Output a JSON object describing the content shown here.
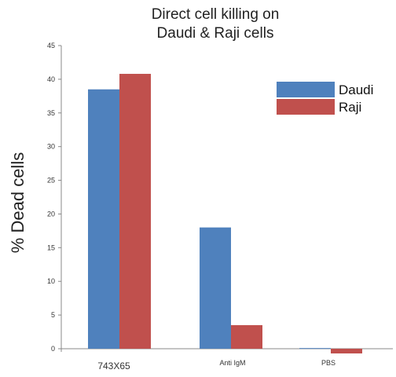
{
  "chart_data": {
    "type": "bar",
    "title_lines": [
      "Direct cell killing on",
      "Daudi & Raji cells"
    ],
    "ylabel": "% Dead cells",
    "xlabel": "",
    "categories": [
      "743X65",
      "Anti IgM",
      "PBS"
    ],
    "series": [
      {
        "name": "Daudi",
        "color": "#4f81bd",
        "values": [
          38.5,
          18.0,
          0.1
        ]
      },
      {
        "name": "Raji",
        "color": "#c0504d",
        "values": [
          40.8,
          3.5,
          -0.7
        ]
      }
    ],
    "ylim": [
      0,
      45
    ],
    "yticks": [
      0,
      5,
      10,
      15,
      20,
      25,
      30,
      35,
      40,
      45
    ],
    "grid": false,
    "legend_position": "top-right"
  }
}
